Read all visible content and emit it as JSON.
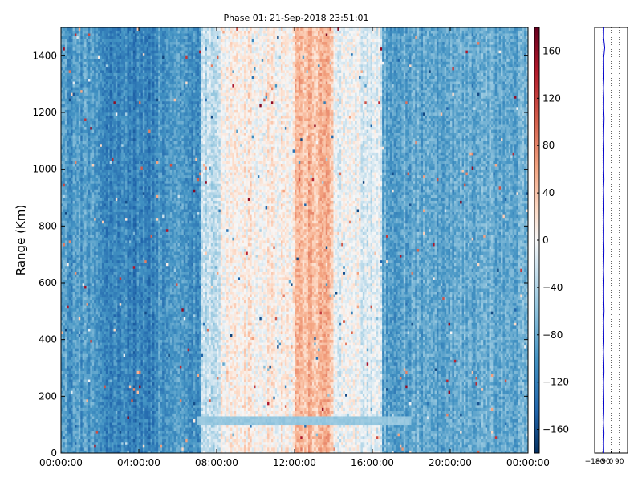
{
  "chart_data": [
    {
      "type": "heatmap",
      "title": "Phase 01: 21-Sep-2018 23:51:01",
      "ylabel": "Range (Km)",
      "xlabel": "",
      "x_ticks": [
        "00:00:00",
        "04:00:00",
        "08:00:00",
        "12:00:00",
        "16:00:00",
        "20:00:00",
        "00:00:00"
      ],
      "y_ticks": [
        "0",
        "200",
        "400",
        "600",
        "800",
        "1000",
        "1200",
        "1400"
      ],
      "xlim_hours": [
        0,
        24
      ],
      "ylim": [
        0,
        1500
      ],
      "colormap": "RdBu_r",
      "clim": [
        -180,
        180
      ],
      "colorbar_ticks": [
        "160",
        "120",
        "80",
        "40",
        "0",
        "−40",
        "−80",
        "−120",
        "−160"
      ],
      "colorbar_tick_values": [
        160,
        120,
        80,
        40,
        0,
        -40,
        -80,
        -120,
        -160
      ],
      "phase_profile_by_time": [
        {
          "t_start": 0,
          "t_end": 2,
          "phase": -95
        },
        {
          "t_start": 2,
          "t_end": 5,
          "phase": -115
        },
        {
          "t_start": 5,
          "t_end": 7.2,
          "phase": -100
        },
        {
          "t_start": 7.2,
          "t_end": 8.2,
          "phase": -35
        },
        {
          "t_start": 8.2,
          "t_end": 12,
          "phase": 8
        },
        {
          "t_start": 12,
          "t_end": 14,
          "phase": 50
        },
        {
          "t_start": 14,
          "t_end": 16.5,
          "phase": -10
        },
        {
          "t_start": 16.5,
          "t_end": 20,
          "phase": -85
        },
        {
          "t_start": 20,
          "t_end": 24,
          "phase": -80
        }
      ],
      "horizontal_band": {
        "range_start": 100,
        "range_end": 130,
        "t_start": 7,
        "t_end": 18,
        "phase": -55
      }
    },
    {
      "type": "line",
      "title": "",
      "x_ticks": [
        "−180",
        "−90",
        "0",
        "90"
      ],
      "xlim": [
        -180,
        180
      ],
      "ylim": [
        0,
        1500
      ],
      "grid": true,
      "series": [
        {
          "values": [
            -80,
            -82,
            -78,
            -85,
            -80,
            -79,
            -81,
            -83,
            -78,
            -80,
            -84,
            -79,
            -80,
            -82,
            -77,
            -80,
            -81,
            -79,
            -83,
            -80,
            -78,
            -81,
            -80,
            -82,
            -79,
            -80,
            -83,
            -78,
            -81,
            -80,
            -79,
            -82,
            -80,
            -77,
            -81,
            -80,
            -84,
            -79,
            -80,
            -81,
            -70,
            -82,
            -80
          ]
        }
      ]
    }
  ]
}
